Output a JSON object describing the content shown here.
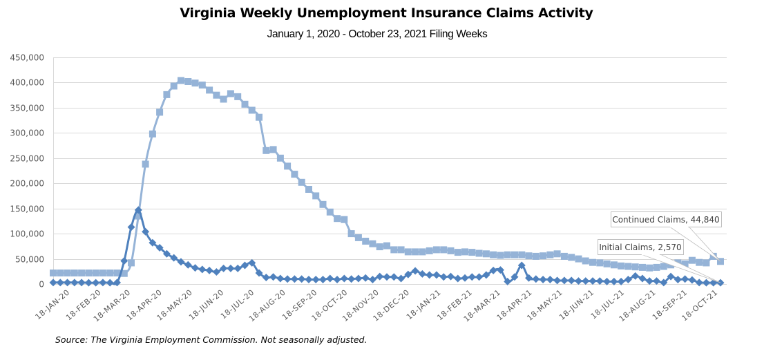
{
  "chart_data": {
    "type": "line",
    "title": "Virginia Weekly Unemployment Insurance Claims Activity",
    "subtitle": "January 1, 2020 - October 23, 2021 Filing Weeks",
    "source": "Source: The Virginia Employment Commission. Not seasonally adjusted.",
    "xlabel": "",
    "ylabel": "",
    "ylim": [
      0,
      450000
    ],
    "grid": true,
    "y_ticks": [
      "0",
      "50,000",
      "100,000",
      "150,000",
      "200,000",
      "250,000",
      "300,000",
      "350,000",
      "400,000",
      "450,000"
    ],
    "y_tick_values": [
      0,
      50000,
      100000,
      150000,
      200000,
      250000,
      300000,
      350000,
      400000,
      450000
    ],
    "x_ticks": [
      "18-JAN-20",
      "18-FEB-20",
      "18-MAR-20",
      "18-APR-20",
      "18-MAY-20",
      "18-JUN-20",
      "18-JUL-20",
      "18-AUG-20",
      "18-SEP-20",
      "18-OCT-20",
      "18-NOV-20",
      "18-DEC-20",
      "18-JAN-21",
      "18-FEB-21",
      "18-MAR-21",
      "18-APR-21",
      "18-MAY-21",
      "18-JUN-21",
      "18-JUL-21",
      "18-AUG-21",
      "18-SEP-21",
      "18-OCT-21"
    ],
    "x_tick_weeks": [
      2.0,
      6.43,
      10.57,
      15.0,
      19.29,
      23.71,
      28.0,
      32.43,
      36.86,
      41.14,
      45.57,
      49.86,
      54.29,
      58.71,
      62.71,
      67.14,
      71.43,
      75.86,
      80.14,
      84.57,
      89.0,
      93.29
    ],
    "series": [
      {
        "name": "Continued Claims",
        "color": "#95B3D7",
        "marker": "square",
        "values": [
          22000,
          22000,
          22000,
          22000,
          22000,
          22000,
          22000,
          22000,
          22000,
          22000,
          21000,
          42000,
          135000,
          238000,
          298000,
          341000,
          376000,
          393000,
          404000,
          402000,
          399000,
          395000,
          385000,
          375000,
          367000,
          378000,
          372000,
          357000,
          345000,
          331000,
          265000,
          267000,
          250000,
          234000,
          218000,
          202000,
          188000,
          175000,
          158000,
          143000,
          130000,
          128000,
          100000,
          92000,
          85000,
          80000,
          74000,
          76000,
          68000,
          68000,
          64000,
          64000,
          64000,
          66000,
          68000,
          68000,
          66000,
          63000,
          64000,
          63000,
          61000,
          60000,
          58000,
          57000,
          58000,
          58000,
          58000,
          56000,
          55000,
          56000,
          58000,
          60000,
          55000,
          53000,
          50000,
          46000,
          43000,
          42000,
          40000,
          38000,
          36000,
          35000,
          34000,
          33000,
          32000,
          33000,
          35000,
          38000,
          42000,
          40000,
          47000,
          43000,
          42000,
          55000,
          44840
        ],
        "end_label": "Continued Claims, 44,840"
      },
      {
        "name": "Initial Claims",
        "color": "#4F81BD",
        "marker": "diamond",
        "values": [
          3000,
          3000,
          3000,
          3000,
          3000,
          2500,
          2500,
          3000,
          2500,
          3000,
          46000,
          113000,
          147000,
          104000,
          82000,
          72000,
          60000,
          52000,
          44000,
          38000,
          32000,
          29000,
          27000,
          24000,
          31000,
          31000,
          31000,
          37000,
          42000,
          22000,
          13000,
          14000,
          11000,
          10000,
          10000,
          10000,
          9000,
          9000,
          9000,
          11000,
          9000,
          11000,
          10000,
          11000,
          12000,
          9000,
          15000,
          14000,
          14000,
          11000,
          19000,
          26000,
          20000,
          18000,
          18000,
          14000,
          15000,
          11000,
          12000,
          14000,
          14000,
          18000,
          27000,
          28000,
          5000,
          14000,
          37000,
          12000,
          10000,
          9000,
          9000,
          7000,
          7000,
          7000,
          6000,
          6000,
          6000,
          6000,
          5000,
          5000,
          5000,
          9000,
          16000,
          11000,
          6000,
          6000,
          3000,
          15000,
          9000,
          10000,
          8000,
          3000,
          2570,
          2570,
          2570
        ],
        "end_label": "Initial Claims, 2,570"
      }
    ]
  }
}
